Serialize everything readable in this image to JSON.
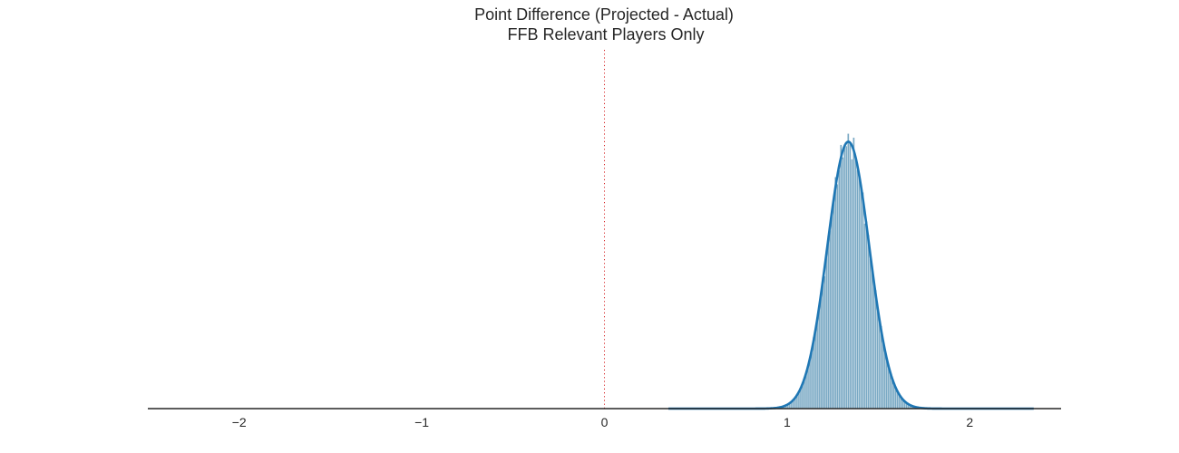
{
  "chart_data": {
    "type": "bar",
    "subtype": "histogram-with-kde",
    "title": [
      "Point Difference (Projected - Actual)",
      "FFB Relevant Players Only"
    ],
    "xlabel": "",
    "ylabel": "",
    "xlim": [
      -2.5,
      2.5
    ],
    "x_ticks": [
      -2,
      -1,
      0,
      1,
      2
    ],
    "x_tick_labels": [
      "−2",
      "−1",
      "0",
      "1",
      "2"
    ],
    "y_axis_visible": false,
    "grid": false,
    "reference_line": {
      "x": 0,
      "style": "dotted",
      "color": "#d62728"
    },
    "histogram": {
      "color": "#7aa9c4",
      "edge_color": "#ffffff",
      "range": [
        0.35,
        2.35
      ],
      "bins": 200,
      "mean": 1.335,
      "std": 0.115,
      "peak_density": 3.45
    },
    "kde": {
      "color": "#1f77b4",
      "peak_x": 1.335,
      "peak_density": 3.45
    }
  }
}
